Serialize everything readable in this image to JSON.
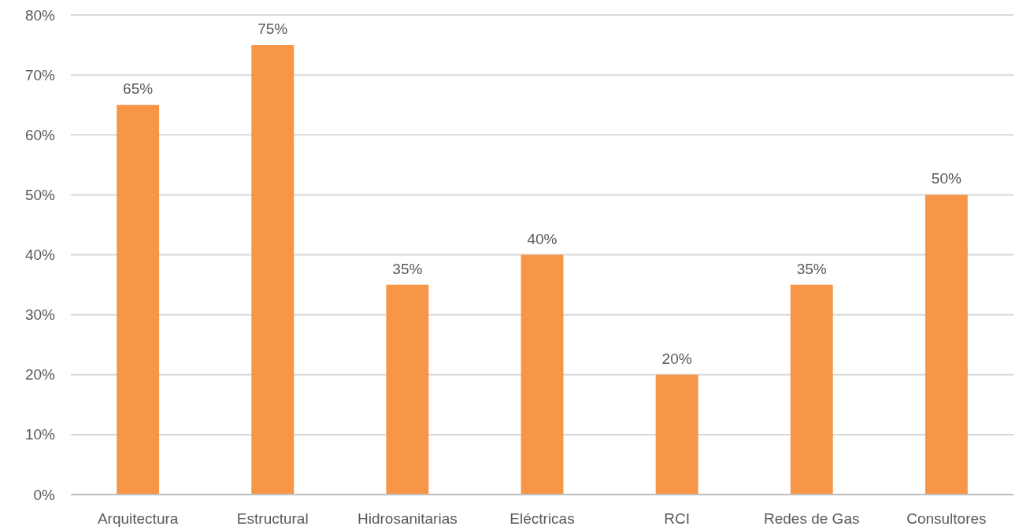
{
  "chart_data": {
    "type": "bar",
    "categories": [
      "Arquitectura",
      "Estructural",
      "Hidrosanitarias",
      "Eléctricas",
      "RCI",
      "Redes de Gas",
      "Consultores"
    ],
    "values": [
      65,
      75,
      35,
      40,
      20,
      35,
      50
    ],
    "value_labels": [
      "65%",
      "75%",
      "35%",
      "40%",
      "20%",
      "35%",
      "50%"
    ],
    "color": "#f79646",
    "ylim": [
      0,
      80
    ],
    "yticks": [
      {
        "value": 0,
        "label": "0%"
      },
      {
        "value": 10,
        "label": "10%"
      },
      {
        "value": 20,
        "label": "20%"
      },
      {
        "value": 30,
        "label": "30%"
      },
      {
        "value": 40,
        "label": "40%"
      },
      {
        "value": 50,
        "label": "50%"
      },
      {
        "value": 60,
        "label": "60%"
      },
      {
        "value": 70,
        "label": "70%"
      },
      {
        "value": 80,
        "label": "80%"
      }
    ],
    "grid": "y"
  }
}
